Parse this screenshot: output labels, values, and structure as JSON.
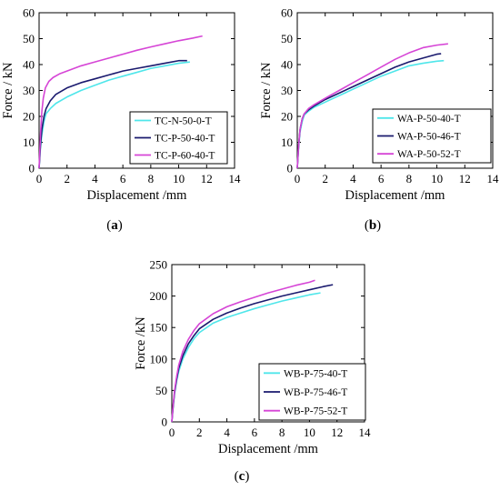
{
  "colors": {
    "cyan": "#4fe6ea",
    "navy": "#1a1a6e",
    "magenta": "#d645d6"
  },
  "chart_data": [
    {
      "type": "line",
      "panel_label": "(a)",
      "panel_letter": "a",
      "xlabel": "Displacement /mm",
      "ylabel": "Force / kN",
      "xlim": [
        0,
        14
      ],
      "ylim": [
        0,
        60
      ],
      "xticks": [
        0,
        2,
        4,
        6,
        8,
        10,
        12,
        14
      ],
      "yticks": [
        0,
        10,
        20,
        30,
        40,
        50,
        60
      ],
      "legend_position": "bottom-right",
      "series": [
        {
          "name": "TC-N-50-0-T",
          "color": "#4fe6ea",
          "x": [
            0,
            0.1,
            0.2,
            0.35,
            0.5,
            0.8,
            1.2,
            2,
            3,
            4,
            5,
            6,
            7,
            8,
            9,
            10,
            10.8
          ],
          "y": [
            0,
            8,
            13,
            18,
            21,
            23,
            25,
            27.5,
            30,
            32,
            34,
            35.5,
            37,
            38.5,
            39.5,
            40.5,
            41
          ]
        },
        {
          "name": "TC-P-50-40-T",
          "color": "#1a1a6e",
          "x": [
            0,
            0.1,
            0.2,
            0.35,
            0.5,
            0.8,
            1.2,
            2,
            3,
            4,
            5,
            6,
            7,
            8,
            9,
            10,
            10.6
          ],
          "y": [
            0,
            9,
            15,
            20,
            23,
            26,
            28.5,
            31,
            33,
            34.5,
            36,
            37.5,
            38.5,
            39.5,
            40.5,
            41.5,
            41.5
          ]
        },
        {
          "name": "TC-P-60-40-T",
          "color": "#d645d6",
          "x": [
            0,
            0.1,
            0.2,
            0.3,
            0.45,
            0.7,
            1,
            1.5,
            2,
            3,
            4,
            5,
            6,
            7,
            8,
            9,
            10,
            11,
            11.7
          ],
          "y": [
            0,
            13,
            22,
            27,
            31,
            33.5,
            35,
            36.5,
            37.5,
            39.5,
            41,
            42.5,
            44,
            45.5,
            46.8,
            48,
            49.2,
            50.2,
            51
          ]
        }
      ]
    },
    {
      "type": "line",
      "panel_label": "(b)",
      "panel_letter": "b",
      "xlabel": "Displacement /mm",
      "ylabel": "Force / kN",
      "xlim": [
        0,
        14
      ],
      "ylim": [
        0,
        60
      ],
      "xticks": [
        0,
        2,
        4,
        6,
        8,
        10,
        12,
        14
      ],
      "yticks": [
        0,
        10,
        20,
        30,
        40,
        50,
        60
      ],
      "legend_position": "bottom-right",
      "series": [
        {
          "name": "WA-P-50-40-T",
          "color": "#4fe6ea",
          "x": [
            0,
            0.1,
            0.2,
            0.35,
            0.5,
            0.8,
            1.2,
            2,
            3,
            4,
            5,
            6,
            7,
            8,
            9,
            10,
            10.5
          ],
          "y": [
            0,
            8,
            14,
            18,
            20.5,
            22,
            23.5,
            25.5,
            28,
            30.5,
            33,
            35.5,
            37.5,
            39.5,
            40.5,
            41.3,
            41.5
          ]
        },
        {
          "name": "WA-P-50-46-T",
          "color": "#1a1a6e",
          "x": [
            0,
            0.1,
            0.2,
            0.35,
            0.5,
            0.8,
            1.2,
            2,
            3,
            4,
            5,
            6,
            7,
            8,
            9,
            10,
            10.3
          ],
          "y": [
            0,
            9,
            15,
            19,
            21,
            22.5,
            24,
            26.5,
            29,
            31.5,
            34,
            36.5,
            39,
            41,
            42.5,
            44,
            44.2
          ]
        },
        {
          "name": "WA-P-50-52-T",
          "color": "#d645d6",
          "x": [
            0,
            0.1,
            0.2,
            0.35,
            0.5,
            0.8,
            1.2,
            2,
            3,
            4,
            5,
            6,
            7,
            8,
            9,
            10,
            10.8
          ],
          "y": [
            0,
            9,
            15,
            19,
            21,
            23,
            24.5,
            27,
            30,
            33,
            36,
            39,
            42,
            44.5,
            46.5,
            47.5,
            48
          ]
        }
      ]
    },
    {
      "type": "line",
      "panel_label": "(c)",
      "panel_letter": "c",
      "xlabel": "Displacement /mm",
      "ylabel": "Force /kN",
      "xlim": [
        0,
        14
      ],
      "ylim": [
        0,
        250
      ],
      "xticks": [
        0,
        2,
        4,
        6,
        8,
        10,
        12,
        14
      ],
      "yticks": [
        0,
        50,
        100,
        150,
        200,
        250
      ],
      "legend_position": "bottom-right",
      "series": [
        {
          "name": "WB-P-75-40-T",
          "color": "#4fe6ea",
          "x": [
            0,
            0.1,
            0.2,
            0.35,
            0.5,
            0.8,
            1.2,
            1.6,
            2,
            3,
            4,
            5,
            6,
            7,
            8,
            9,
            10,
            10.8
          ],
          "y": [
            0,
            25,
            45,
            65,
            80,
            100,
            118,
            132,
            142,
            157,
            166,
            173,
            180,
            186,
            192,
            197,
            202,
            205
          ]
        },
        {
          "name": "WB-P-75-46-T",
          "color": "#1a1a6e",
          "x": [
            0,
            0.1,
            0.2,
            0.35,
            0.5,
            0.8,
            1.2,
            1.6,
            2,
            3,
            4,
            5,
            6,
            7,
            8,
            9,
            10,
            11,
            11.7
          ],
          "y": [
            0,
            25,
            47,
            68,
            85,
            105,
            124,
            137,
            148,
            163,
            173,
            181,
            188,
            194,
            200,
            205,
            210,
            215,
            218
          ]
        },
        {
          "name": "WB-P-75-52-T",
          "color": "#d645d6",
          "x": [
            0,
            0.1,
            0.2,
            0.35,
            0.5,
            0.8,
            1.2,
            1.6,
            2,
            3,
            4,
            5,
            6,
            7,
            8,
            9,
            10,
            10.4
          ],
          "y": [
            0,
            28,
            50,
            72,
            90,
            112,
            131,
            145,
            156,
            172,
            183,
            191,
            198,
            205,
            211,
            217,
            222,
            225
          ]
        }
      ]
    }
  ]
}
